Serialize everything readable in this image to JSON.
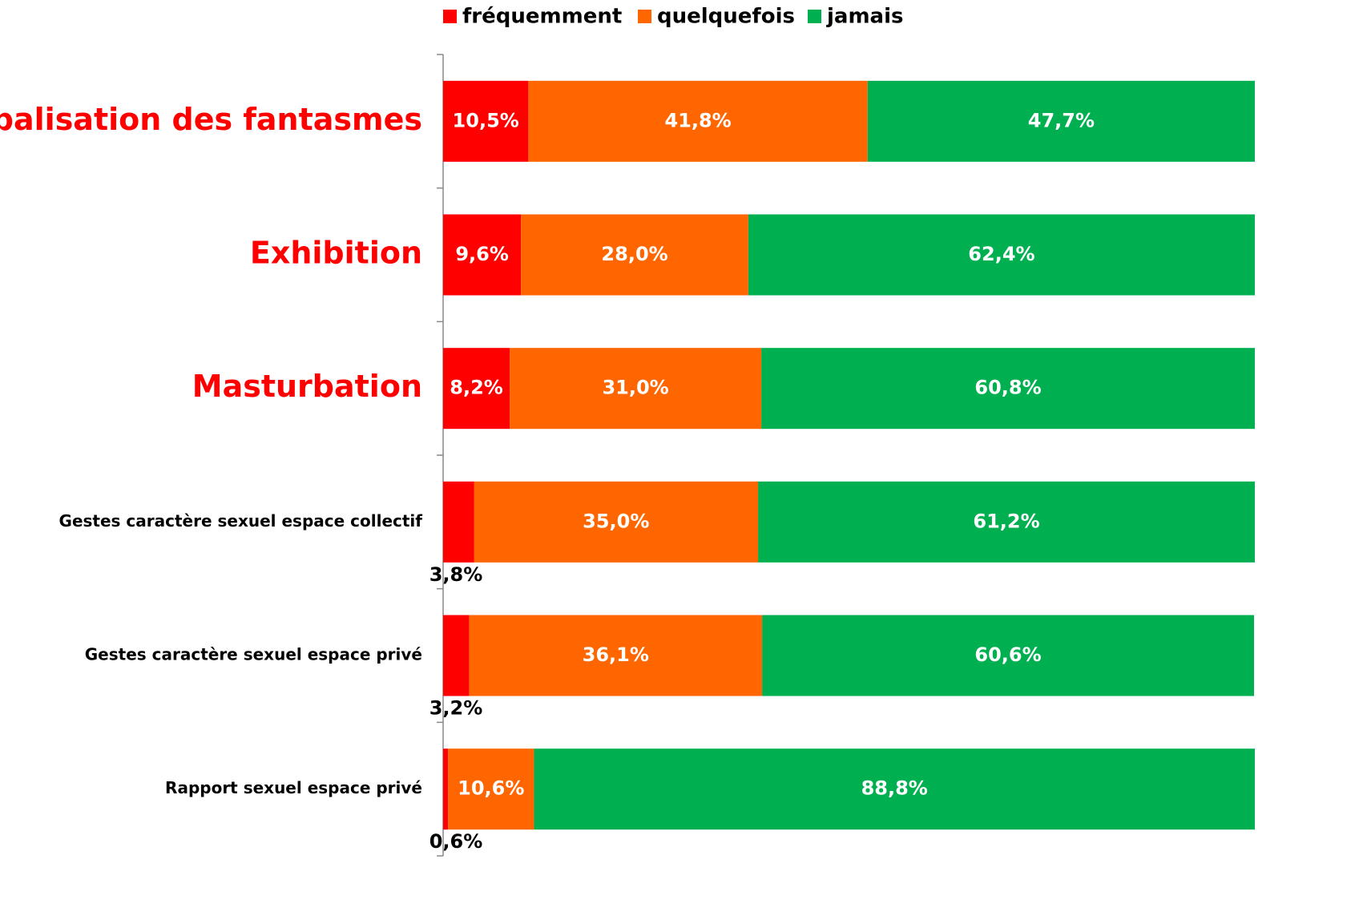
{
  "chart_data": {
    "type": "stacked_barh",
    "categories": [
      "Verbalisation des fantasmes",
      "Exhibition",
      "Masturbation",
      "Gestes caractère sexuel espace collectif",
      "Gestes caractère sexuel espace privé",
      "Rapport sexuel espace privé"
    ],
    "highlight": [
      true,
      true,
      true,
      false,
      false,
      false
    ],
    "highlight_color": "#ff0000",
    "series": [
      {
        "name": "fréquemment",
        "color": "#ff0000",
        "values": [
          10.5,
          9.6,
          8.2,
          3.8,
          3.2,
          0.6
        ],
        "value_labels": [
          "10,5%",
          "9,6%",
          "8,2%",
          "3,8%",
          "3,2%",
          "0,6%"
        ]
      },
      {
        "name": "quelquefois",
        "color": "#ff6600",
        "values": [
          41.8,
          28.0,
          31.0,
          35.0,
          36.1,
          10.6
        ],
        "value_labels": [
          "41,8%",
          "28,0%",
          "31,0%",
          "35,0%",
          "36,1%",
          "10,6%"
        ]
      },
      {
        "name": "jamais",
        "color": "#00b050",
        "values": [
          47.7,
          62.4,
          60.8,
          61.2,
          60.6,
          88.8
        ],
        "value_labels": [
          "47,7%",
          "62,4%",
          "60,8%",
          "61,2%",
          "60,6%",
          "88,8%"
        ]
      }
    ],
    "xlim": [
      0,
      100
    ],
    "legend": "top"
  }
}
